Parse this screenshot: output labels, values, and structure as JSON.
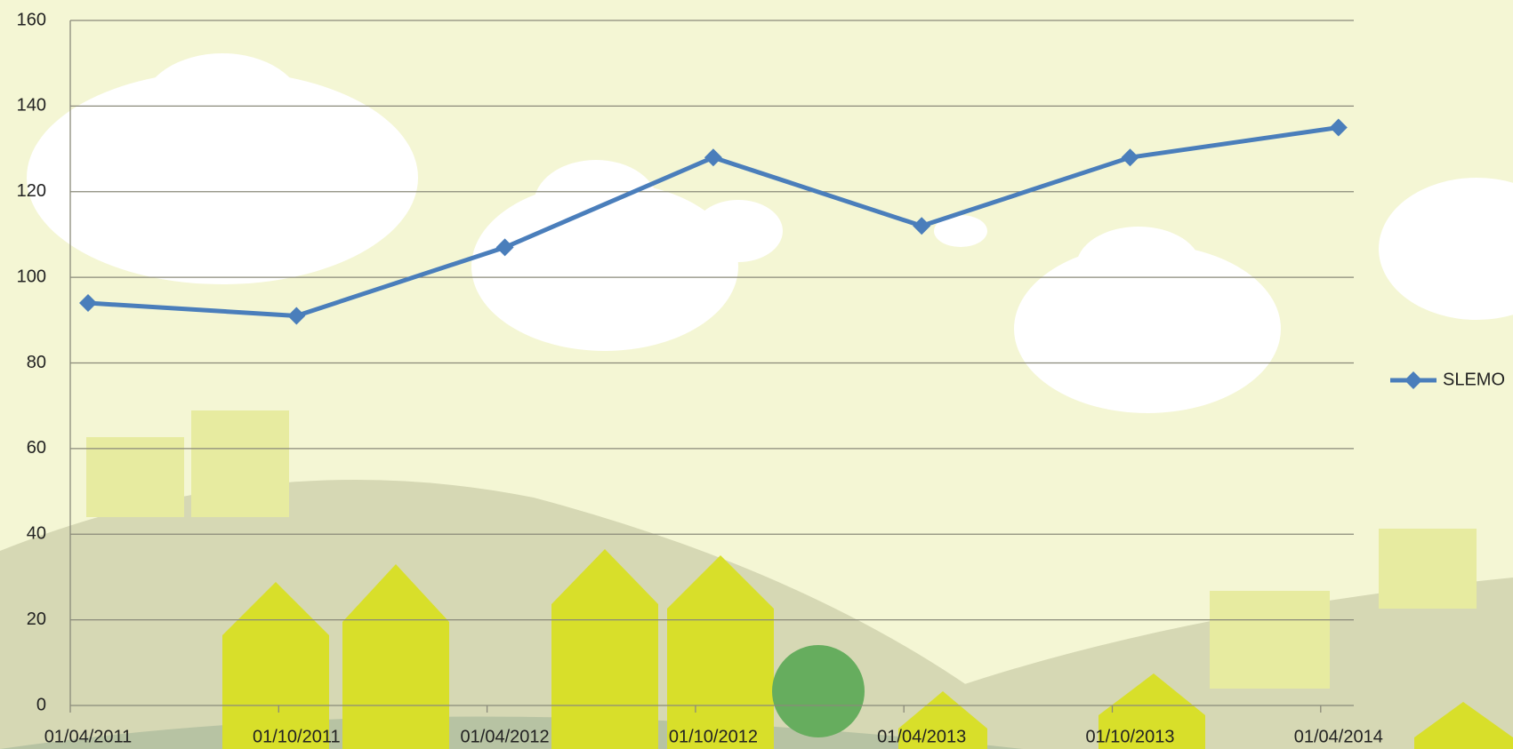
{
  "chart_data": {
    "type": "line",
    "categories": [
      "01/04/2011",
      "01/10/2011",
      "01/04/2012",
      "01/10/2012",
      "01/04/2013",
      "01/10/2013",
      "01/04/2014"
    ],
    "series": [
      {
        "name": "SLEMO",
        "color": "#4a7ebb",
        "values": [
          94,
          91,
          107,
          128,
          112,
          128,
          135
        ]
      }
    ],
    "ylim": [
      0,
      160
    ],
    "yticks": [
      0,
      20,
      40,
      60,
      80,
      100,
      120,
      140,
      160
    ],
    "grid": true,
    "legend": "right"
  }
}
